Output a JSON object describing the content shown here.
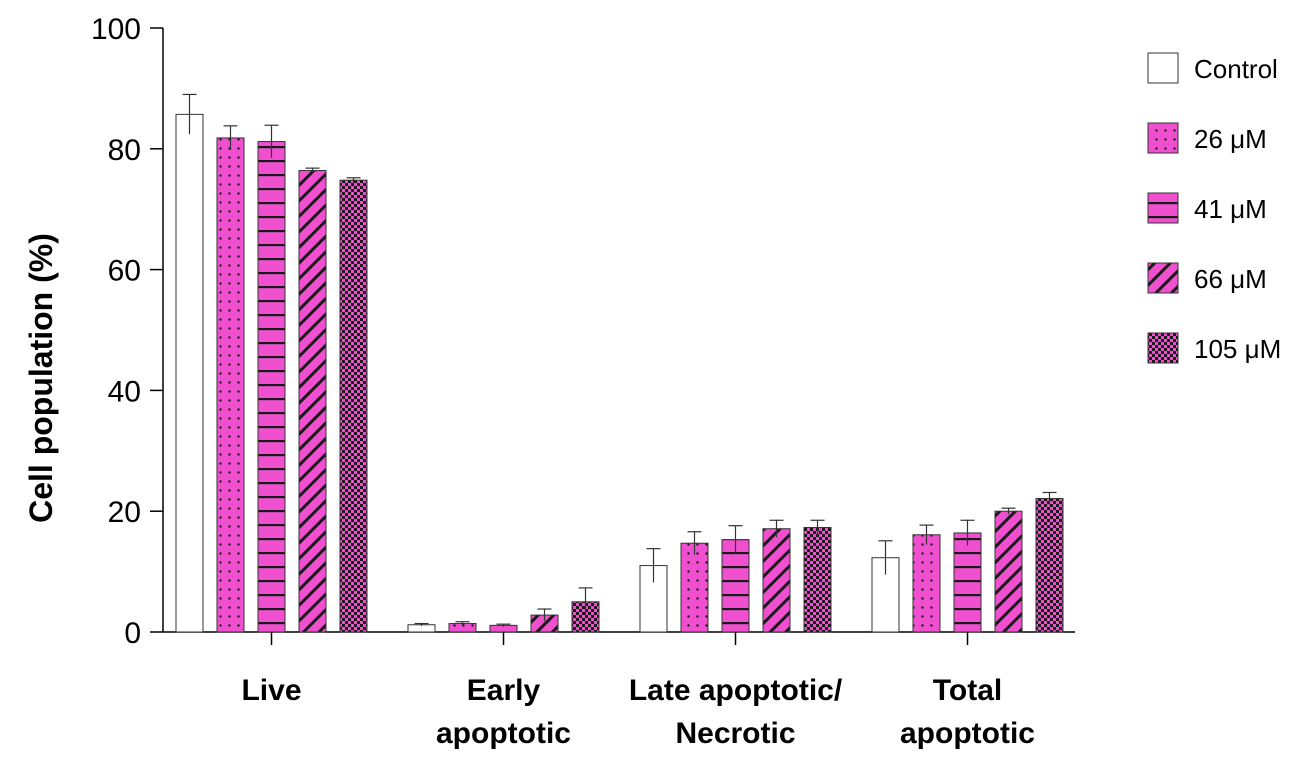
{
  "chart_data": {
    "type": "bar",
    "title": "",
    "xlabel": "",
    "ylabel": "Cell population (%)",
    "ylim": [
      0,
      100
    ],
    "yticks": [
      0,
      20,
      40,
      60,
      80,
      100
    ],
    "grid": false,
    "legend_position": "right",
    "categories": [
      [
        "Live"
      ],
      [
        "Early",
        "apoptotic"
      ],
      [
        "Late apoptotic/",
        "Necrotic"
      ],
      [
        "Total",
        "apoptotic"
      ]
    ],
    "series": [
      {
        "name": "Control",
        "pattern": "none",
        "values": [
          85.7,
          1.2,
          11.0,
          12.3
        ],
        "errors": [
          3.3,
          0.2,
          2.8,
          2.8
        ]
      },
      {
        "name": "26 μM",
        "pattern": "dots",
        "values": [
          81.8,
          1.4,
          14.7,
          16.1
        ],
        "errors": [
          2.0,
          0.3,
          1.9,
          1.6
        ]
      },
      {
        "name": "41 μM",
        "pattern": "horizontal-lines",
        "values": [
          81.2,
          1.1,
          15.3,
          16.4
        ],
        "errors": [
          2.7,
          0.2,
          2.3,
          2.1
        ]
      },
      {
        "name": "66 μM",
        "pattern": "diagonal-lines",
        "values": [
          76.4,
          2.8,
          17.1,
          20.0
        ],
        "errors": [
          0.4,
          1.0,
          1.4,
          0.5
        ]
      },
      {
        "name": "105 μM",
        "pattern": "checker",
        "values": [
          74.8,
          5.0,
          17.3,
          22.1
        ],
        "errors": [
          0.4,
          2.3,
          1.2,
          1.0
        ]
      }
    ],
    "colors": {
      "fill": "#f050d0",
      "pattern_ink": "#1a1a1a",
      "control_fill": "#ffffff",
      "axis": "#000000",
      "error_bar": "#333333"
    }
  }
}
